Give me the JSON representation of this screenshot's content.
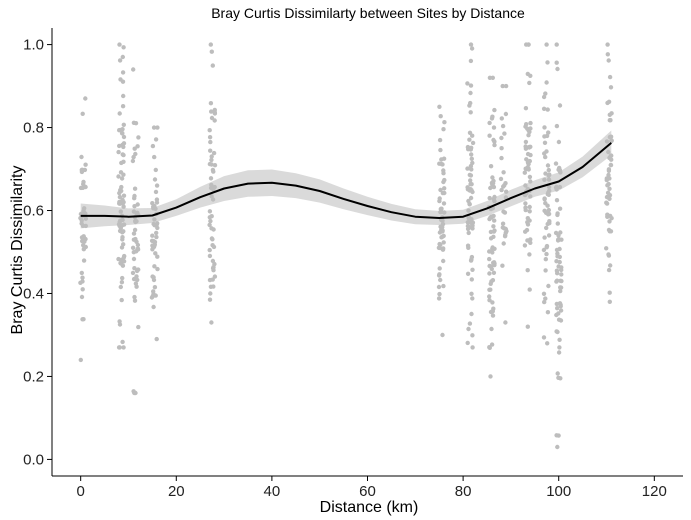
{
  "chart_data": {
    "type": "scatter",
    "title": "Bray Curtis Dissimilarty between Sites by Distance",
    "xlabel": "Distance (km)",
    "ylabel": "Bray Curtis Dissimilarity",
    "xlim": [
      -6,
      126
    ],
    "ylim": [
      -0.04,
      1.04
    ],
    "x_ticks": [
      0,
      20,
      40,
      60,
      80,
      100,
      120
    ],
    "x_tick_labels": [
      "0",
      "20",
      "40",
      "60",
      "80",
      "100",
      "120"
    ],
    "y_ticks": [
      0.0,
      0.2,
      0.4,
      0.6,
      0.8,
      1.0
    ],
    "y_tick_labels": [
      "0.0",
      "0.2",
      "0.4",
      "0.6",
      "0.8",
      "1.0"
    ],
    "grid": false,
    "legend": "none",
    "colors": {
      "points": "#bdbdbd",
      "trend": "#000000",
      "band": "#d3d3d3",
      "axis": "#000000"
    },
    "point_clusters": [
      {
        "x": 0.5,
        "ymin": 0.24,
        "ymax": 0.87,
        "n": 45
      },
      {
        "x": 8.5,
        "ymin": 0.27,
        "ymax": 1.0,
        "n": 80
      },
      {
        "x": 11.5,
        "ymin": 0.16,
        "ymax": 0.94,
        "n": 50
      },
      {
        "x": 15.5,
        "ymin": 0.29,
        "ymax": 0.8,
        "n": 50
      },
      {
        "x": 27.5,
        "ymin": 0.33,
        "ymax": 1.0,
        "n": 55
      },
      {
        "x": 75.5,
        "ymin": 0.3,
        "ymax": 0.85,
        "n": 60
      },
      {
        "x": 81.5,
        "ymin": 0.27,
        "ymax": 1.0,
        "n": 70
      },
      {
        "x": 86,
        "ymin": 0.2,
        "ymax": 0.92,
        "n": 70
      },
      {
        "x": 88.5,
        "ymin": 0.33,
        "ymax": 0.9,
        "n": 30
      },
      {
        "x": 93.5,
        "ymin": 0.32,
        "ymax": 1.0,
        "n": 65
      },
      {
        "x": 97.5,
        "ymin": 0.28,
        "ymax": 1.0,
        "n": 55
      },
      {
        "x": 100,
        "ymin": 0.03,
        "ymax": 1.0,
        "n": 70
      },
      {
        "x": 110.5,
        "ymin": 0.38,
        "ymax": 1.0,
        "n": 55
      }
    ],
    "trend": {
      "x": [
        0,
        5,
        10,
        15,
        20,
        25,
        30,
        35,
        40,
        45,
        50,
        55,
        60,
        65,
        70,
        75,
        80,
        85,
        90,
        95,
        100,
        105,
        111
      ],
      "y": [
        0.587,
        0.587,
        0.585,
        0.588,
        0.607,
        0.632,
        0.653,
        0.665,
        0.667,
        0.66,
        0.647,
        0.628,
        0.611,
        0.596,
        0.585,
        0.582,
        0.585,
        0.605,
        0.63,
        0.653,
        0.67,
        0.705,
        0.763
      ],
      "ci_halfwidth": [
        0.03,
        0.025,
        0.02,
        0.018,
        0.02,
        0.025,
        0.03,
        0.032,
        0.032,
        0.03,
        0.028,
        0.025,
        0.022,
        0.02,
        0.018,
        0.017,
        0.017,
        0.018,
        0.02,
        0.02,
        0.022,
        0.025,
        0.03
      ]
    }
  }
}
